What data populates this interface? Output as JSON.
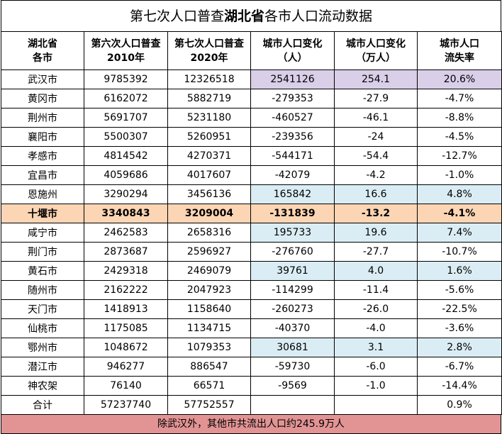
{
  "title": {
    "pre": "第七次人口普查",
    "bold": "湖北省",
    "post": "各市人口流动数据"
  },
  "headers": [
    "湖北省\n各市",
    "第六次人口普查\n2010年",
    "第七次人口普查\n2020年",
    "城市人口变化\n（人）",
    "城市人口变化\n（万人）",
    "城市人口\n流失率"
  ],
  "rows": [
    {
      "city": "武汉市",
      "p2010": "9785392",
      "p2020": "12326518",
      "chg": "2541126",
      "chg_wan": "254.1",
      "rate": "20.6%",
      "style": "purple"
    },
    {
      "city": "黄冈市",
      "p2010": "6162072",
      "p2020": "5882719",
      "chg": "-279353",
      "chg_wan": "-27.9",
      "rate": "-4.7%",
      "style": ""
    },
    {
      "city": "荆州市",
      "p2010": "5691707",
      "p2020": "5231180",
      "chg": "-460527",
      "chg_wan": "-46.1",
      "rate": "-8.8%",
      "style": ""
    },
    {
      "city": "襄阳市",
      "p2010": "5500307",
      "p2020": "5260951",
      "chg": "-239356",
      "chg_wan": "-24",
      "rate": "-4.5%",
      "style": ""
    },
    {
      "city": "孝感市",
      "p2010": "4814542",
      "p2020": "4270371",
      "chg": "-544171",
      "chg_wan": "-54.4",
      "rate": "-12.7%",
      "style": ""
    },
    {
      "city": "宜昌市",
      "p2010": "4059686",
      "p2020": "4017607",
      "chg": "-42079",
      "chg_wan": "-4.2",
      "rate": "-1.0%",
      "style": ""
    },
    {
      "city": "恩施州",
      "p2010": "3290294",
      "p2020": "3456136",
      "chg": "165842",
      "chg_wan": "16.6",
      "rate": "4.8%",
      "style": "blue"
    },
    {
      "city": "十堰市",
      "p2010": "3340843",
      "p2020": "3209004",
      "chg": "-131839",
      "chg_wan": "-13.2",
      "rate": "-4.1%",
      "style": "highlight"
    },
    {
      "city": "咸宁市",
      "p2010": "2462583",
      "p2020": "2658316",
      "chg": "195733",
      "chg_wan": "19.6",
      "rate": "7.4%",
      "style": "blue"
    },
    {
      "city": "荆门市",
      "p2010": "2873687",
      "p2020": "2596927",
      "chg": "-276760",
      "chg_wan": "-27.7",
      "rate": "-10.7%",
      "style": ""
    },
    {
      "city": "黄石市",
      "p2010": "2429318",
      "p2020": "2469079",
      "chg": "39761",
      "chg_wan": "4.0",
      "rate": "1.6%",
      "style": "blue"
    },
    {
      "city": "随州市",
      "p2010": "2162222",
      "p2020": "2047923",
      "chg": "-114299",
      "chg_wan": "-11.4",
      "rate": "-5.6%",
      "style": ""
    },
    {
      "city": "天门市",
      "p2010": "1418913",
      "p2020": "1158640",
      "chg": "-260273",
      "chg_wan": "-26.0",
      "rate": "-22.5%",
      "style": ""
    },
    {
      "city": "仙桃市",
      "p2010": "1175085",
      "p2020": "1134715",
      "chg": "-40370",
      "chg_wan": "-4.0",
      "rate": "-3.6%",
      "style": ""
    },
    {
      "city": "鄂州市",
      "p2010": "1048672",
      "p2020": "1079353",
      "chg": "30681",
      "chg_wan": "3.1",
      "rate": "2.8%",
      "style": "blue"
    },
    {
      "city": "潜江市",
      "p2010": "946277",
      "p2020": "886547",
      "chg": "-59730",
      "chg_wan": "-6.0",
      "rate": "-6.7%",
      "style": ""
    },
    {
      "city": "神农架",
      "p2010": "76140",
      "p2020": "66571",
      "chg": "-9569",
      "chg_wan": "-1.0",
      "rate": "-14.4%",
      "style": ""
    }
  ],
  "total": {
    "city": "合计",
    "p2010": "57237740",
    "p2020": "57752557",
    "chg": "",
    "chg_wan": "",
    "rate": "0.9%"
  },
  "footer": "除武汉外，其他市共流出人口约245.9万人",
  "colors": {
    "purple": "#d9cfe8",
    "blue": "#dbedf4",
    "highlight": "#fcd5b4",
    "footer": "#e29494"
  }
}
